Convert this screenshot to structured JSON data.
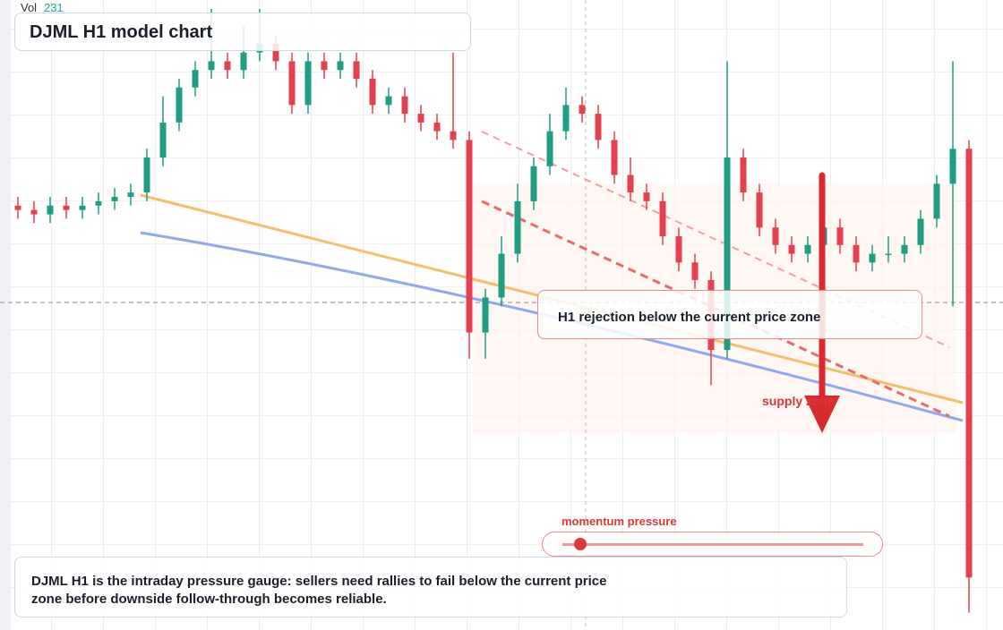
{
  "chart_data": {
    "type": "candlestick",
    "title": "DJML H1 model chart",
    "volume_label": "Vol",
    "volume": 231,
    "annotation": "H1 rejection below the current price zone",
    "zone_label": "supply zone",
    "description": "DJML H1 is the intraday pressure gauge: sellers need rallies to fail below the current price zone before downside follow-through becomes reliable.",
    "slider": {
      "label": "momentum pressure",
      "value": 6,
      "min": 0,
      "max": 100
    },
    "up_color": "#1f9e83",
    "down_color": "#e5404f",
    "ylim": [
      28,
      100
    ],
    "open": [
      76.5,
      76,
      75.5,
      76.5,
      76,
      76.5,
      77,
      77.5,
      78,
      82,
      86,
      90,
      92,
      93,
      92,
      94,
      95,
      93,
      88,
      93,
      92,
      93,
      91,
      88,
      89,
      87,
      86,
      85,
      84,
      62,
      66,
      71,
      77,
      81,
      85,
      88,
      87,
      84,
      80,
      78,
      77,
      73,
      70,
      68,
      60,
      82,
      78,
      74,
      72,
      71,
      72,
      74,
      72,
      70,
      71,
      71,
      72,
      75,
      79,
      83
    ],
    "high": [
      77.5,
      77,
      77.5,
      77.5,
      77.5,
      78,
      78.5,
      79,
      83,
      89,
      91,
      93,
      99,
      94,
      97,
      99,
      96,
      94,
      94,
      94,
      94,
      94,
      92,
      90,
      90,
      88,
      87,
      94,
      85,
      67,
      73,
      79,
      82,
      87,
      90,
      89,
      88,
      85,
      82,
      79,
      78,
      74,
      71,
      69,
      93,
      83,
      79,
      75,
      73,
      73,
      76,
      75,
      73,
      72,
      73,
      73,
      76,
      80,
      93,
      84
    ],
    "low": [
      75,
      74.5,
      74.5,
      75,
      75,
      75.5,
      76,
      76.5,
      77,
      81,
      85,
      89,
      91,
      91,
      91,
      93,
      92,
      87,
      87,
      91,
      91,
      90,
      87,
      87,
      86,
      85,
      84,
      83,
      59,
      59,
      65,
      70,
      76,
      80,
      84,
      86,
      83,
      79,
      77,
      76,
      72,
      69,
      67,
      56,
      59,
      77,
      73,
      71,
      70,
      70,
      71,
      71,
      69,
      69,
      70,
      70,
      71,
      74,
      65,
      30
    ],
    "close": [
      76,
      75.5,
      76.5,
      76,
      76.5,
      77,
      77.5,
      78,
      82,
      86,
      90,
      92,
      93,
      92,
      94,
      95,
      93,
      88,
      93,
      92,
      93,
      91,
      88,
      89,
      87,
      86,
      85,
      84,
      62,
      66,
      71,
      77,
      81,
      85,
      88,
      87,
      84,
      80,
      78,
      77,
      73,
      70,
      68,
      60,
      82,
      78,
      74,
      72,
      71,
      72,
      74,
      72,
      70,
      71,
      71,
      72,
      75,
      79,
      83,
      34
    ]
  }
}
